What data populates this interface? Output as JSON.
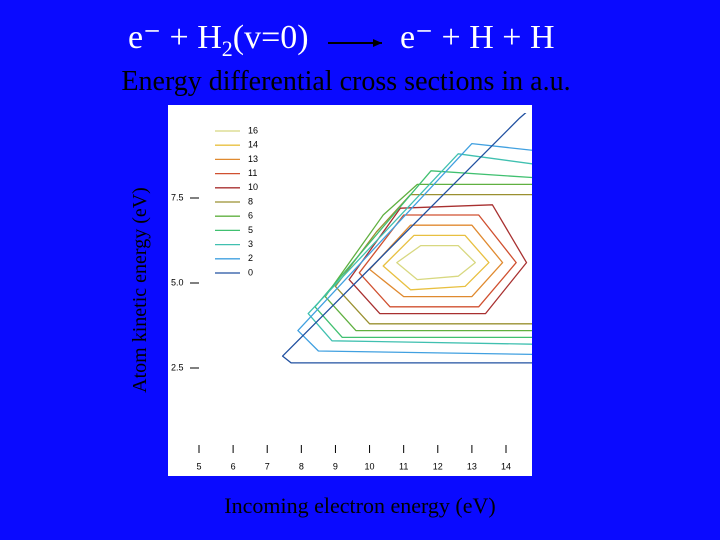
{
  "chart_data": {
    "type": "contour",
    "title": {
      "left": "e⁻ + H",
      "subscript": "2",
      "left_rest": "(v=0)",
      "right": "e⁻ + H + H"
    },
    "subtitle": "Energy differential cross sections in a.u.",
    "x_label": "Incoming electron energy (eV)",
    "y_label": "Atom kinetic energy (eV)",
    "xlim": [
      5,
      14.8
    ],
    "ylim": [
      0,
      10
    ],
    "xticks": [
      5,
      6,
      7,
      8,
      9,
      10,
      11,
      12,
      13,
      14
    ],
    "yticks": [
      2.5,
      {
        "value": 5,
        "label": "5.0"
      },
      7.5
    ],
    "series": [
      {
        "name": "16",
        "color": "#d8d880",
        "x": [
          10.8,
          11.4,
          12.6,
          13.1,
          12.6,
          11.5
        ],
        "y": [
          5.6,
          5.1,
          5.2,
          5.6,
          6.1,
          6.1
        ]
      },
      {
        "name": "14",
        "color": "#e8c040",
        "x": [
          10.4,
          11.2,
          12.8,
          13.5,
          12.8,
          11.3
        ],
        "y": [
          5.5,
          4.8,
          4.9,
          5.6,
          6.4,
          6.4
        ]
      },
      {
        "name": "13",
        "color": "#e08a30",
        "x": [
          10.0,
          11.0,
          13.0,
          13.9,
          13.0,
          11.2
        ],
        "y": [
          5.4,
          4.6,
          4.6,
          5.6,
          6.7,
          6.7
        ]
      },
      {
        "name": "11",
        "color": "#d05030",
        "x": [
          9.7,
          10.6,
          13.2,
          14.3,
          13.2,
          11.0
        ],
        "y": [
          5.3,
          4.3,
          4.3,
          5.6,
          7.0,
          7.0
        ]
      },
      {
        "name": "10",
        "color": "#a83030",
        "x": [
          9.4,
          10.3,
          13.4,
          14.6,
          13.6,
          10.9
        ],
        "y": [
          5.1,
          4.1,
          4.1,
          5.6,
          7.3,
          7.2
        ]
      },
      {
        "name": "8",
        "color": "#9a9030",
        "x": [
          9.0,
          10.0,
          14.8,
          14.8,
          11.2,
          10.2
        ],
        "y": [
          4.9,
          3.8,
          3.8,
          7.6,
          7.6,
          6.5
        ]
      },
      {
        "name": "6",
        "color": "#60b040",
        "x": [
          8.7,
          9.6,
          14.8,
          14.8,
          11.4,
          10.4
        ],
        "y": [
          4.6,
          3.6,
          3.6,
          7.9,
          7.9,
          7.0
        ]
      },
      {
        "name": "5",
        "color": "#40c070",
        "x": [
          8.4,
          9.2,
          14.8,
          14.8,
          11.8
        ],
        "y": [
          4.3,
          3.4,
          3.4,
          8.1,
          8.3
        ]
      },
      {
        "name": "3",
        "color": "#40c0b0",
        "x": [
          8.2,
          8.9,
          14.8,
          14.8,
          12.6
        ],
        "y": [
          4.1,
          3.3,
          3.2,
          8.5,
          8.8
        ]
      },
      {
        "name": "2",
        "color": "#40a0e0",
        "x": [
          7.9,
          8.5,
          14.8,
          14.8,
          13.0
        ],
        "y": [
          3.6,
          3.0,
          2.9,
          8.9,
          9.1
        ]
      },
      {
        "name": "0",
        "color": "#2050a0",
        "x": [
          14.8,
          7.7,
          7.45,
          14.4,
          14.8
        ],
        "y": [
          2.65,
          2.65,
          2.85,
          9.85,
          10.2
        ]
      }
    ]
  }
}
